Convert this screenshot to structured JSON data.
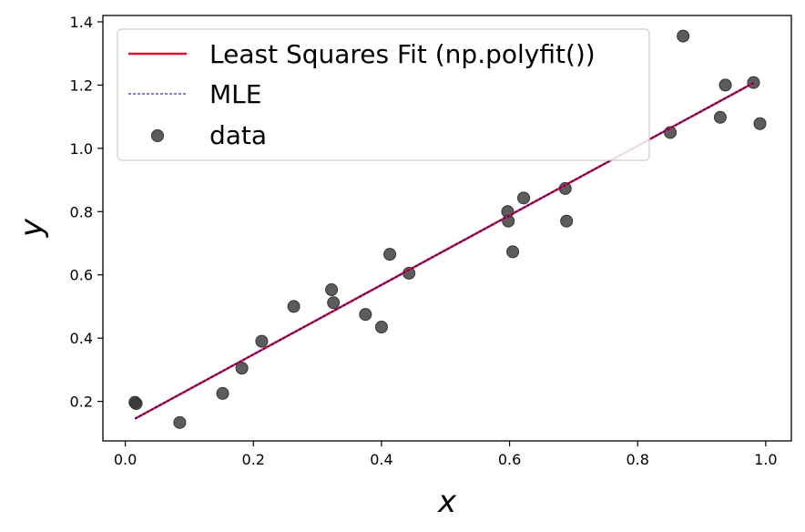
{
  "chart_data": {
    "type": "scatter",
    "title": "",
    "xlabel": "x",
    "ylabel": "y",
    "xlim": [
      -0.035,
      1.04
    ],
    "ylim": [
      0.075,
      1.42
    ],
    "xticks": [
      0.0,
      0.2,
      0.4,
      0.6,
      0.8,
      1.0
    ],
    "xtick_labels": [
      "0.0",
      "0.2",
      "0.4",
      "0.6",
      "0.8",
      "1.0"
    ],
    "yticks": [
      0.2,
      0.4,
      0.6,
      0.8,
      1.0,
      1.2,
      1.4
    ],
    "ytick_labels": [
      "0.2",
      "0.4",
      "0.6",
      "0.8",
      "1.0",
      "1.2",
      "1.4"
    ],
    "grid": false,
    "legend_position": "upper-left",
    "series": [
      {
        "name": "Least Squares Fit (np.polyfit())",
        "kind": "line",
        "color": "#DC143C",
        "style": "solid",
        "x": [
          0.015,
          0.982
        ],
        "y": [
          0.145,
          1.208
        ]
      },
      {
        "name": "MLE",
        "kind": "line",
        "color": "#00008B",
        "style": "dashed",
        "x": [
          0.015,
          0.982
        ],
        "y": [
          0.145,
          1.208
        ]
      },
      {
        "name": "data",
        "kind": "scatter",
        "color": "#333333",
        "x": [
          0.015,
          0.017,
          0.085,
          0.152,
          0.182,
          0.213,
          0.263,
          0.322,
          0.325,
          0.375,
          0.4,
          0.413,
          0.443,
          0.597,
          0.598,
          0.605,
          0.622,
          0.687,
          0.689,
          0.851,
          0.871,
          0.929,
          0.937,
          0.981,
          0.991
        ],
        "y": [
          0.197,
          0.193,
          0.133,
          0.225,
          0.305,
          0.39,
          0.5,
          0.553,
          0.512,
          0.475,
          0.435,
          0.665,
          0.605,
          0.8,
          0.77,
          0.673,
          0.843,
          0.873,
          0.77,
          1.05,
          1.355,
          1.098,
          1.2,
          1.208,
          1.078
        ]
      }
    ]
  }
}
